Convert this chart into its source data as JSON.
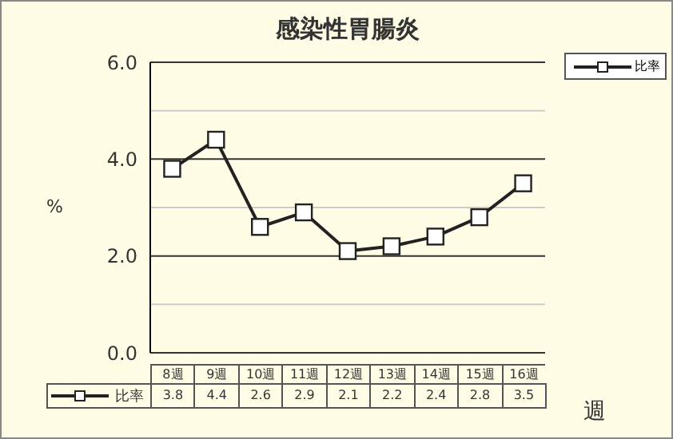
{
  "chart_data": {
    "type": "line",
    "title": "感染性胃腸炎",
    "ylabel": "%",
    "xlabel": "週",
    "categories": [
      "8週",
      "9週",
      "10週",
      "11週",
      "12週",
      "13週",
      "14週",
      "15週",
      "16週"
    ],
    "series": [
      {
        "name": "比率",
        "color": "#222222",
        "values": [
          3.8,
          4.4,
          2.6,
          2.9,
          2.1,
          2.2,
          2.4,
          2.8,
          3.5
        ]
      }
    ],
    "ylim": [
      0,
      6
    ],
    "yticks": [
      {
        "value": 0,
        "label": "0.0"
      },
      {
        "value": 1,
        "label": null
      },
      {
        "value": 2,
        "label": "2.0"
      },
      {
        "value": 3,
        "label": null
      },
      {
        "value": 4,
        "label": "4.0"
      },
      {
        "value": 5,
        "label": null
      },
      {
        "value": 6,
        "label": "6.0"
      }
    ],
    "grid": "y",
    "legend": "top right",
    "marker": "square",
    "line_style": "solid",
    "data_labels": true
  }
}
